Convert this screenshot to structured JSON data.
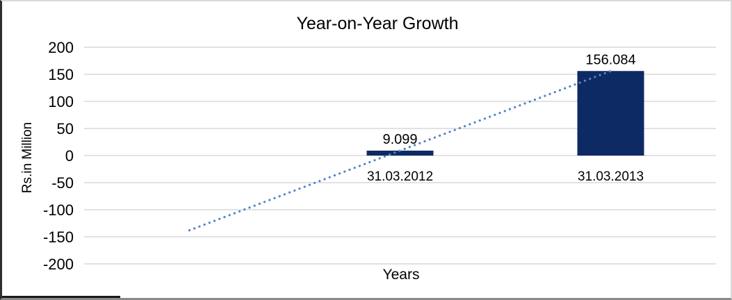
{
  "chart_data": {
    "type": "bar",
    "title": "Year-on-Year Growth",
    "xlabel": "Years",
    "ylabel": "Rs.in Million",
    "categories": [
      "",
      "31.03.2012",
      "31.03.2013"
    ],
    "values": [
      null,
      9.099,
      156.084
    ],
    "data_labels": [
      "",
      "9.099",
      "156.084"
    ],
    "ylim": [
      -200,
      200
    ],
    "ytick_step": 50,
    "yticks": [
      200,
      150,
      100,
      50,
      0,
      -50,
      -100,
      -150,
      -200
    ],
    "grid": true,
    "legend": "none",
    "bar_color": "#0e2a64",
    "gridline_color": "#d9d9d9",
    "text_color": "#000000",
    "trendline": {
      "style": "dotted",
      "color": "#4f86c8",
      "from": {
        "category_index": 0,
        "value": -138
      },
      "to": {
        "category_index": 2,
        "value": 156.084
      }
    }
  }
}
